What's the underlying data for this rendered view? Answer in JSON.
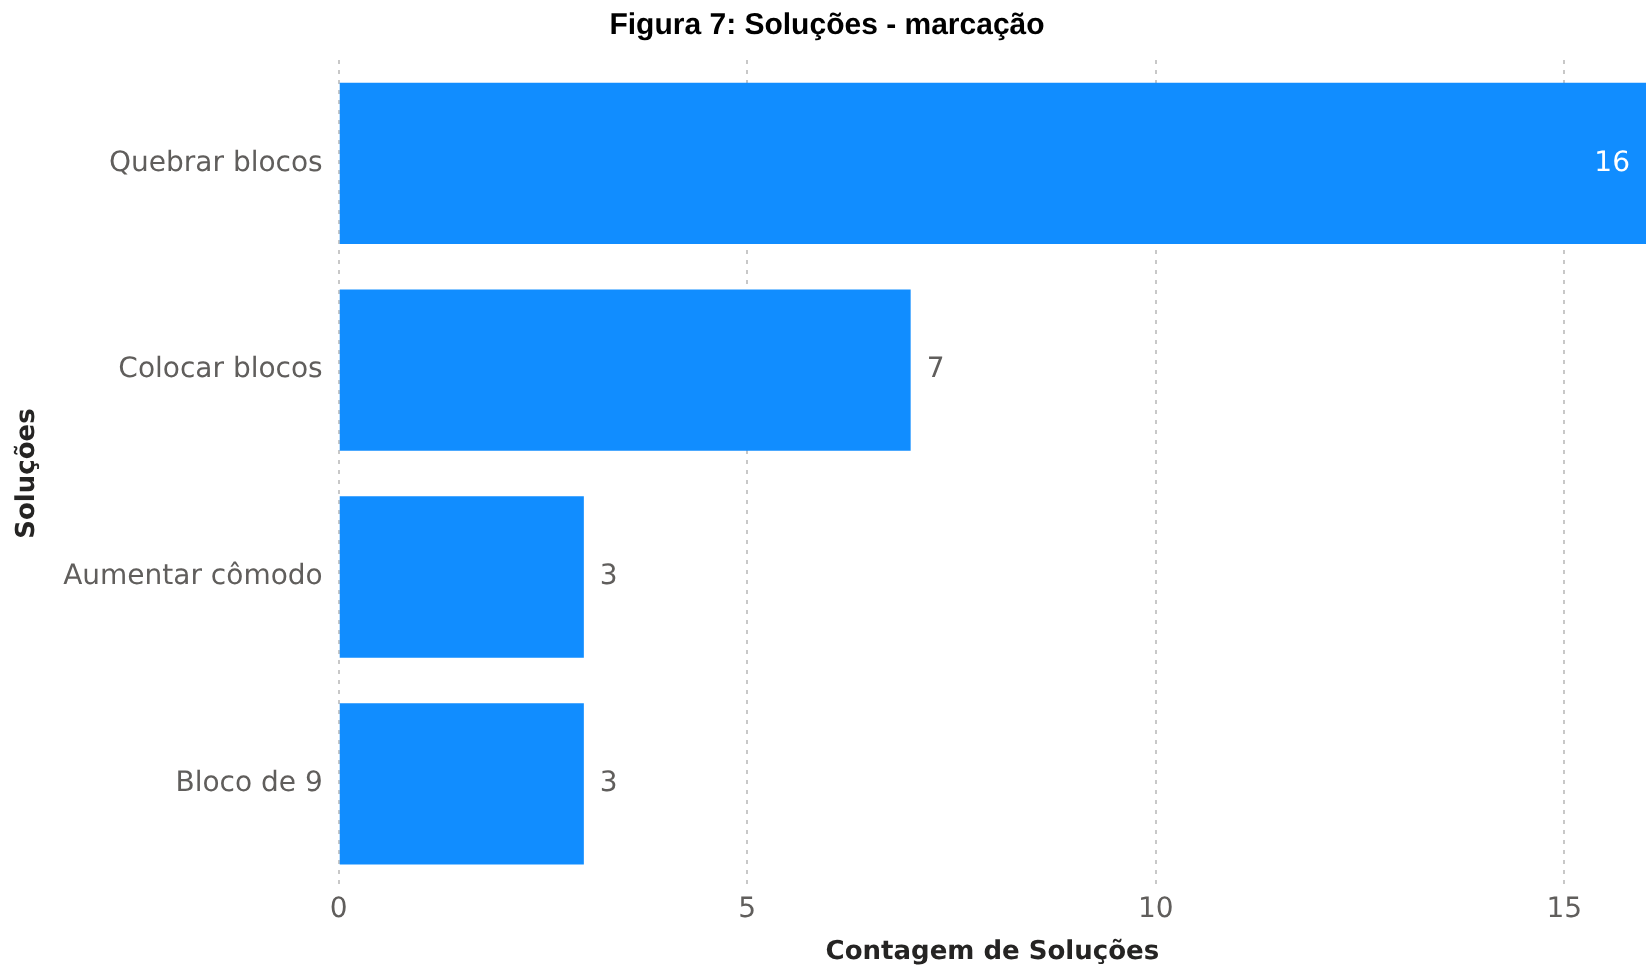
{
  "chart_data": {
    "type": "bar",
    "orientation": "horizontal",
    "title": "Figura 7: Soluções - marcação",
    "xlabel": "Contagem de Soluções",
    "ylabel": "Soluções",
    "categories": [
      "Quebrar blocos",
      "Colocar blocos",
      "Aumentar cômodo",
      "Bloco de 9"
    ],
    "values": [
      16,
      7,
      3,
      3
    ],
    "color": "#118dff",
    "xlim": [
      0,
      16
    ],
    "xticks": [
      0,
      5,
      10,
      15
    ],
    "grid": "x",
    "data_labels": true
  }
}
